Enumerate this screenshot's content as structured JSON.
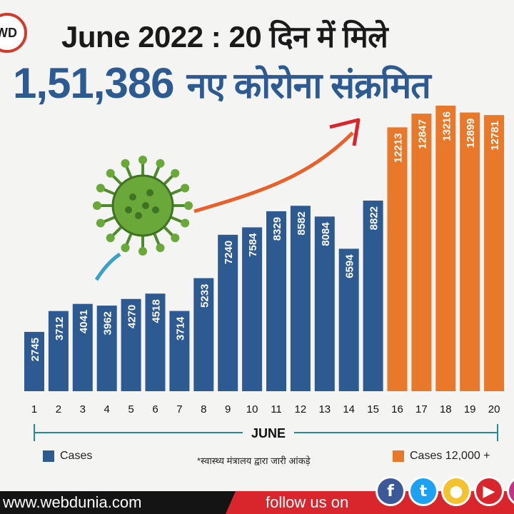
{
  "logo": {
    "text": "WD"
  },
  "header": {
    "title": "June 2022 : 20 दिन में मिले",
    "total": "1,51,386",
    "subtitle_hi": "नए कोरोना संक्रमित"
  },
  "chart_data": {
    "type": "bar",
    "categories": [
      "1",
      "2",
      "3",
      "4",
      "5",
      "6",
      "7",
      "8",
      "9",
      "10",
      "11",
      "12",
      "13",
      "14",
      "15",
      "16",
      "17",
      "18",
      "19",
      "20"
    ],
    "values": [
      2745,
      3712,
      4041,
      3962,
      4270,
      4518,
      3714,
      5233,
      7240,
      7584,
      8329,
      8582,
      8084,
      6594,
      8822,
      12213,
      12847,
      13216,
      12899,
      12781
    ],
    "highlight_threshold": 12000,
    "colors": {
      "normal": "#2c5a91",
      "highlight": "#e8782a"
    },
    "xlabel": "JUNE",
    "ylim": [
      0,
      13216
    ],
    "grid": false,
    "legend_placement": "bottom"
  },
  "legend": {
    "cases_label": "Cases",
    "cases_high_label": "Cases 12,000 +"
  },
  "footnote": "*स्वास्थ्य मंत्रालय द्वारा जारी आंकड़े",
  "footer": {
    "site": "www.webdunia.com",
    "follow": "follow us on"
  },
  "social_icons": [
    {
      "name": "facebook-icon",
      "glyph": "f",
      "color": "#3b5998"
    },
    {
      "name": "twitter-icon",
      "glyph": "t",
      "color": "#1da1f2"
    },
    {
      "name": "koo-icon",
      "glyph": "●",
      "color": "#f2c230"
    },
    {
      "name": "youtube-icon",
      "glyph": "▶",
      "color": "#d8262c"
    },
    {
      "name": "instagram-icon",
      "glyph": "◎",
      "color": "#c13584"
    }
  ]
}
